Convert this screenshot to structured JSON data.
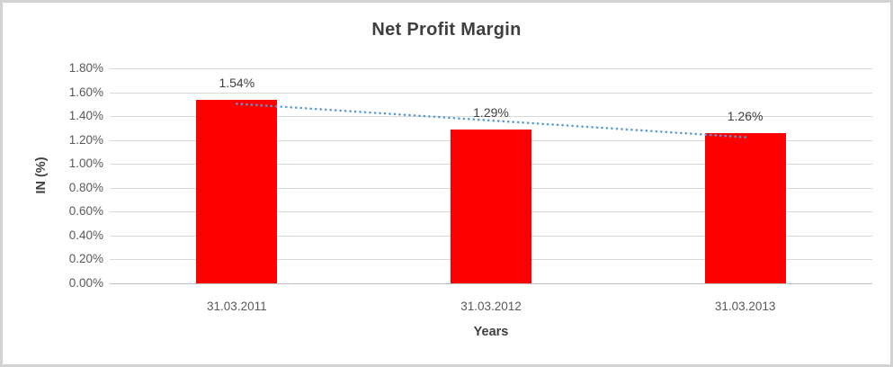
{
  "chart_data": {
    "type": "bar",
    "title": "Net Profit Margin",
    "xlabel": "Years",
    "ylabel": "IN (%)",
    "categories": [
      "31.03.2011",
      "31.03.2012",
      "31.03.2013"
    ],
    "values": [
      1.54,
      1.29,
      1.26
    ],
    "data_labels": [
      "1.54%",
      "1.29%",
      "1.26%"
    ],
    "ylim": [
      0,
      1.8
    ],
    "ytick_step": 0.2,
    "ytick_labels": [
      "1.80%",
      "1.60%",
      "1.40%",
      "1.20%",
      "1.00%",
      "0.80%",
      "0.60%",
      "0.40%",
      "0.20%",
      "0.00%"
    ],
    "grid": true,
    "legend": "none",
    "trendline": {
      "type": "linear",
      "style": "dotted"
    },
    "colors": {
      "bar": "#FF0000",
      "trendline": "#5B9BD5",
      "gridline": "#D9D9D9",
      "axis_line": "#BFBFBF",
      "title_text": "#3F3F3F",
      "tick_text": "#595959",
      "label_text": "#404040",
      "frame_border": "#D2D2D2"
    }
  }
}
